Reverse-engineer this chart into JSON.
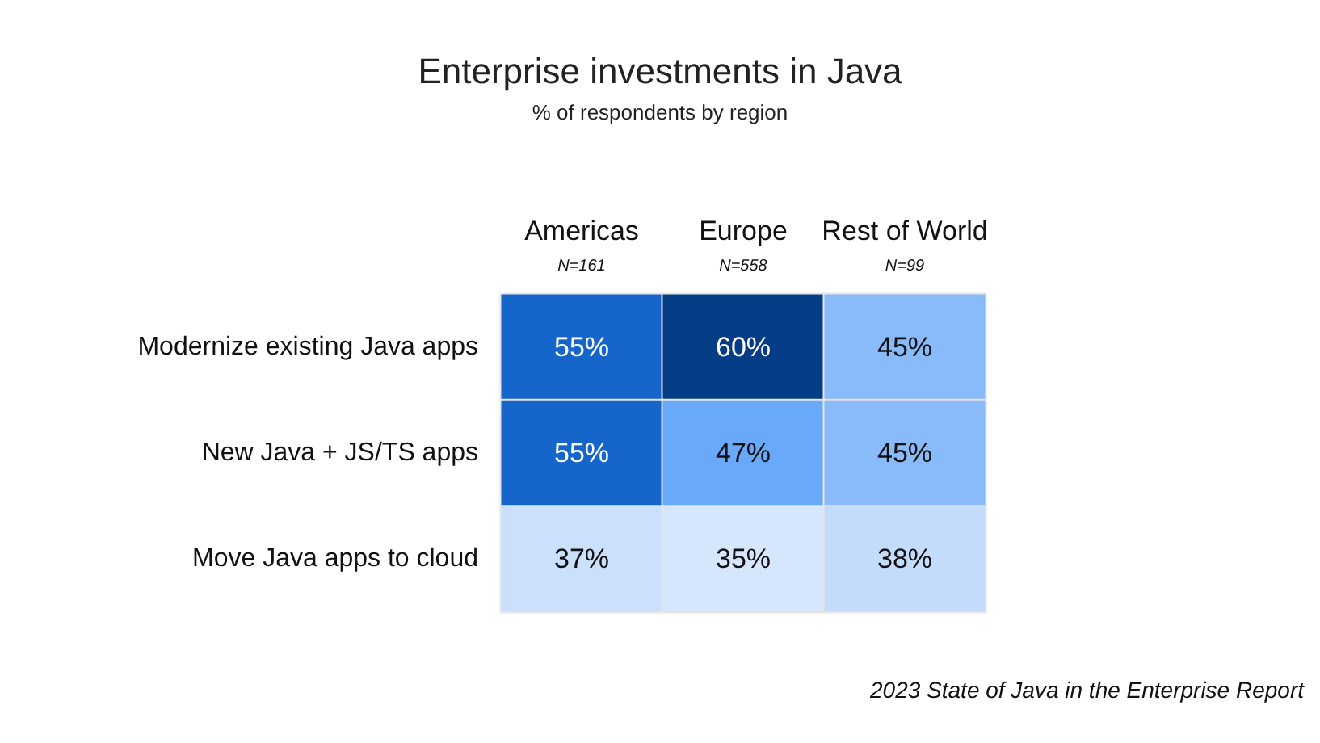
{
  "chart_data": {
    "type": "heatmap",
    "title": "Enterprise investments in Java",
    "subtitle": "% of respondents by region",
    "categories": [
      "Americas\nN=161",
      "Europe\nN=558",
      "Rest of World\nN=99"
    ],
    "y_categories": [
      "Modernize existing Java apps",
      "New Java + JS/TS apps",
      "Move Java apps to cloud"
    ],
    "cells": [
      [
        55,
        60,
        45
      ],
      [
        55,
        47,
        45
      ],
      [
        37,
        35,
        38
      ]
    ],
    "cell_labels": [
      [
        "55%",
        "60%",
        "45%"
      ],
      [
        "55%",
        "47%",
        "45%"
      ],
      [
        "37%",
        "35%",
        "38%"
      ]
    ],
    "annotations": [
      "2023 State of Java in the Enterprise Report"
    ]
  }
}
